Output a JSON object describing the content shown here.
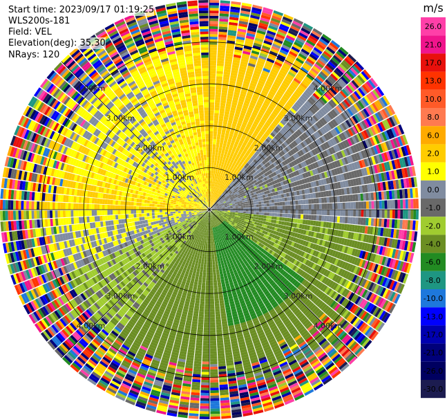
{
  "header": {
    "start_time": "Start time: 2023/09/17 01:19:25",
    "instrument": "WLS200s-181",
    "field": "Field: VEL",
    "elevation": "Elevation(deg): 35.30",
    "nrays": "NRays: 120"
  },
  "colorbar": {
    "unit": "m/s",
    "labels": [
      "26.0",
      "21.0",
      "17.0",
      "13.0",
      "10.0",
      "8.0",
      "6.0",
      "2.0",
      "1.0",
      "0.0",
      "-1.0",
      "-2.0",
      "-4.0",
      "-6.0",
      "-8.0",
      "-10.0",
      "-13.0",
      "-17.0",
      "-21.0",
      "-26.0",
      "-30.0"
    ],
    "colors": [
      "#ff3fa8",
      "#f0148c",
      "#e8100c",
      "#ff3300",
      "#ff5a28",
      "#ff7a50",
      "#ffaa00",
      "#ffcc00",
      "#ffff00",
      "#808ca0",
      "#696969",
      "#a0cc30",
      "#6b8e23",
      "#228b22",
      "#1e9682",
      "#1e78dc",
      "#0000ff",
      "#0000b0",
      "#00007a",
      "#000060",
      "#1c1c50"
    ]
  },
  "chart_data": {
    "type": "heatmap",
    "field": "VEL",
    "units": "m/s",
    "n_rays": 120,
    "elevation_deg": 35.3,
    "range_rings_km": [
      1.0,
      2.0,
      3.0,
      4.0
    ],
    "range_ring_labels": [
      "1.00km",
      "2.00km",
      "3.00km",
      "4.00km"
    ],
    "clean_data_max_range_km": 4.0,
    "max_range_km": 5.0,
    "colorbar_min": -30.0,
    "colorbar_max": 26.0,
    "dominant_patterns": [
      {
        "azimuth_range_deg": [
          270,
          45
        ],
        "velocity_approx": 2.0
      },
      {
        "azimuth_range_deg": [
          45,
          90
        ],
        "velocity_approx": 0.0
      },
      {
        "azimuth_range_deg": [
          90,
          270
        ],
        "velocity_approx": -3.0
      },
      {
        "azimuth_range_deg": [
          125,
          170
        ],
        "velocity_approx": -5.0
      }
    ]
  }
}
